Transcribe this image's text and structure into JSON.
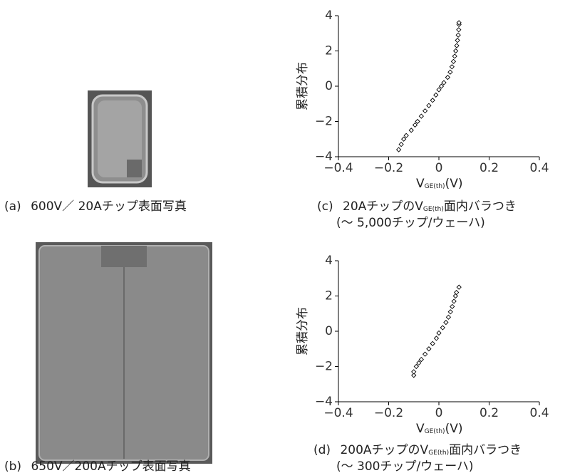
{
  "captions": [
    {
      "label": "(a)",
      "text": "600V／ 20Aチップ表面写真"
    },
    {
      "label": "(b)",
      "text": "650V／200Aチップ表面写真"
    },
    {
      "label": "(c)",
      "text": "20AチップのV",
      "sub": "GE(th)",
      "rest": "面内バラつき",
      "line2": "(～ 5,000チップ/ウェーハ)"
    },
    {
      "label": "(d)",
      "text": "200AチップのV",
      "sub": "GE(th)",
      "rest": "面内バラつき",
      "line2": "(～ 300チップ/ウェーハ)"
    }
  ],
  "chart_data": [
    {
      "type": "scatter",
      "y_label": "累積分布",
      "x_label": "V",
      "x_label_sub": "GE(th)",
      "x_label_unit": "(V)",
      "xlim": [
        -0.4,
        0.4
      ],
      "ylim": [
        -4,
        4
      ],
      "xticks": [
        {
          "value": -0.4,
          "label": "−0.4"
        },
        {
          "value": -0.2,
          "label": "−0.2"
        },
        0,
        0.2,
        0.4
      ],
      "yticks": [
        {
          "value": -4,
          "label": "−4"
        },
        {
          "value": -2,
          "label": "−2"
        },
        0,
        2,
        4
      ],
      "color": "#000000",
      "x": [
        -0.16,
        -0.15,
        -0.14,
        -0.13,
        -0.11,
        -0.095,
        -0.085,
        -0.07,
        -0.055,
        -0.04,
        -0.025,
        -0.012,
        0.0,
        0.01,
        0.02,
        0.035,
        0.045,
        0.052,
        0.058,
        0.063,
        0.067,
        0.071,
        0.074,
        0.077,
        0.079,
        0.08,
        0.08
      ],
      "values": [
        -3.6,
        -3.3,
        -3.0,
        -2.8,
        -2.5,
        -2.2,
        -2.0,
        -1.7,
        -1.4,
        -1.1,
        -0.8,
        -0.5,
        -0.2,
        0,
        0.2,
        0.5,
        0.8,
        1.1,
        1.4,
        1.7,
        2.0,
        2.3,
        2.6,
        2.9,
        3.2,
        3.5,
        3.6
      ]
    },
    {
      "type": "scatter",
      "y_label": "累積分布",
      "x_label": "V",
      "x_label_sub": "GE(th)",
      "x_label_unit": "(V)",
      "xlim": [
        -0.4,
        0.4
      ],
      "ylim": [
        -4,
        4
      ],
      "xticks": [
        {
          "value": -0.4,
          "label": "−0.4"
        },
        {
          "value": -0.2,
          "label": "−0.2"
        },
        0,
        0.2,
        0.4
      ],
      "yticks": [
        {
          "value": -4,
          "label": "−4"
        },
        {
          "value": -2,
          "label": "−2"
        },
        0,
        2,
        4
      ],
      "color": "#000000",
      "x": [
        -0.1,
        -0.1,
        -0.09,
        -0.08,
        -0.07,
        -0.055,
        -0.04,
        -0.025,
        -0.01,
        0.0,
        0.015,
        0.028,
        0.038,
        0.046,
        0.053,
        0.06,
        0.066,
        0.07,
        0.08
      ],
      "values": [
        -2.5,
        -2.3,
        -2.0,
        -1.8,
        -1.6,
        -1.3,
        -1.0,
        -0.7,
        -0.4,
        -0.1,
        0.2,
        0.5,
        0.8,
        1.1,
        1.4,
        1.7,
        2.0,
        2.2,
        2.5
      ]
    }
  ]
}
